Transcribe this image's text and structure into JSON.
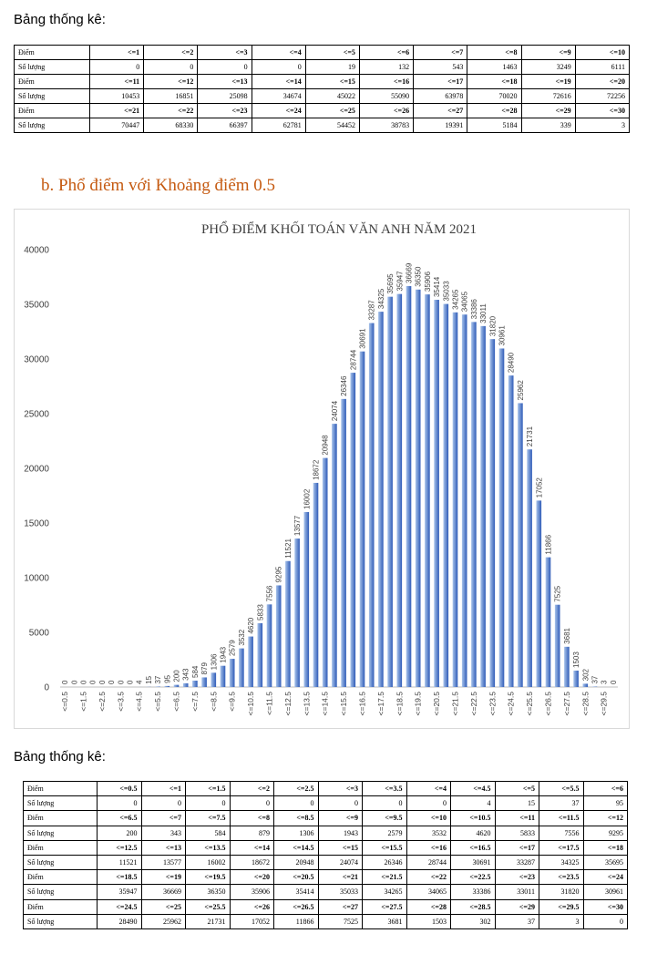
{
  "top_label": "Bảng thống kê:",
  "section_title": "b. Phổ điểm với Khoảng điểm 0.5",
  "bottom_label": "Bảng thống kê:",
  "colors": {
    "bar_light": "#a9c4eb",
    "bar_dark": "#2f5bb7",
    "title_accent": "#c55a11"
  },
  "table1": {
    "row_label_score": "Điểm",
    "row_label_count": "Số lượng",
    "blocks": [
      {
        "scores": [
          "<=1",
          "<=2",
          "<=3",
          "<=4",
          "<=5",
          "<=6",
          "<=7",
          "<=8",
          "<=9",
          "<=10"
        ],
        "counts": [
          "0",
          "0",
          "0",
          "0",
          "19",
          "132",
          "543",
          "1463",
          "3249",
          "6111"
        ]
      },
      {
        "scores": [
          "<=11",
          "<=12",
          "<=13",
          "<=14",
          "<=15",
          "<=16",
          "<=17",
          "<=18",
          "<=19",
          "<=20"
        ],
        "counts": [
          "10453",
          "16851",
          "25098",
          "34674",
          "45022",
          "55090",
          "63978",
          "70020",
          "72616",
          "72256"
        ]
      },
      {
        "scores": [
          "<=21",
          "<=22",
          "<=23",
          "<=24",
          "<=25",
          "<=26",
          "<=27",
          "<=28",
          "<=29",
          "<=30"
        ],
        "counts": [
          "70447",
          "68330",
          "66397",
          "62781",
          "54452",
          "38783",
          "19391",
          "5184",
          "339",
          "3"
        ]
      }
    ]
  },
  "chart_data": {
    "type": "bar",
    "title": "PHỔ ĐIỂM KHỐI TOÁN VĂN ANH  NĂM 2021",
    "xlabel": "",
    "ylabel": "",
    "ylim": [
      0,
      40000
    ],
    "yticks": [
      "0",
      "5000",
      "10000",
      "15000",
      "20000",
      "25000",
      "30000",
      "35000",
      "40000"
    ],
    "grid": false,
    "categories": [
      "<=0.5",
      "<=1",
      "<=1.5",
      "<=2",
      "<=2.5",
      "<=3",
      "<=3.5",
      "<=4",
      "<=4.5",
      "<=5",
      "<=5.5",
      "<=6",
      "<=6.5",
      "<=7",
      "<=7.5",
      "<=8",
      "<=8.5",
      "<=9",
      "<=9.5",
      "<=10",
      "<=10.5",
      "<=11",
      "<=11.5",
      "<=12",
      "<=12.5",
      "<=13",
      "<=13.5",
      "<=14",
      "<=14.5",
      "<=15",
      "<=15.5",
      "<=16",
      "<=16.5",
      "<=17",
      "<=17.5",
      "<=18",
      "<=18.5",
      "<=19",
      "<=19.5",
      "<=20",
      "<=20.5",
      "<=21",
      "<=21.5",
      "<=22",
      "<=22.5",
      "<=23",
      "<=23.5",
      "<=24",
      "<=24.5",
      "<=25",
      "<=25.5",
      "<=26",
      "<=26.5",
      "<=27",
      "<=27.5",
      "<=28",
      "<=28.5",
      "<=29",
      "<=29.5",
      "<=30"
    ],
    "x_tick_labels": [
      "<=0.5",
      "<=1.5",
      "<=2.5",
      "<=3.5",
      "<=4.5",
      "<=5.5",
      "<=6.5",
      "<=7.5",
      "<=8.5",
      "<=9.5",
      "<=10.5",
      "<=11.5",
      "<=12.5",
      "<=13.5",
      "<=14.5",
      "<=15.5",
      "<=16.5",
      "<=17.5",
      "<=18.5",
      "<=19.5",
      "<=20.5",
      "<=21.5",
      "<=22.5",
      "<=23.5",
      "<=24.5",
      "<=25.5",
      "<=26.5",
      "<=27.5",
      "<=28.5",
      "<=29.5"
    ],
    "values": [
      0,
      0,
      0,
      0,
      0,
      0,
      0,
      0,
      4,
      15,
      37,
      95,
      200,
      343,
      584,
      879,
      1306,
      1943,
      2579,
      3532,
      4620,
      5833,
      7556,
      9295,
      11521,
      13577,
      16002,
      18672,
      20948,
      24074,
      26346,
      28744,
      30691,
      33287,
      34325,
      35695,
      35947,
      36669,
      36350,
      35906,
      35414,
      35033,
      34265,
      34065,
      33386,
      33011,
      31820,
      30961,
      28490,
      25962,
      21731,
      17052,
      11866,
      7525,
      3681,
      1503,
      302,
      37,
      3,
      0
    ]
  },
  "table2": {
    "row_label_score": "Điểm",
    "row_label_count": "Số lượng",
    "blocks": [
      {
        "scores": [
          "<=0.5",
          "<=1",
          "<=1.5",
          "<=2",
          "<=2.5",
          "<=3",
          "<=3.5",
          "<=4",
          "<=4.5",
          "<=5",
          "<=5.5",
          "<=6"
        ],
        "counts": [
          "0",
          "0",
          "0",
          "0",
          "0",
          "0",
          "0",
          "0",
          "4",
          "15",
          "37",
          "95"
        ]
      },
      {
        "scores": [
          "<=6.5",
          "<=7",
          "<=7.5",
          "<=8",
          "<=8.5",
          "<=9",
          "<=9.5",
          "<=10",
          "<=10.5",
          "<=11",
          "<=11.5",
          "<=12"
        ],
        "counts": [
          "200",
          "343",
          "584",
          "879",
          "1306",
          "1943",
          "2579",
          "3532",
          "4620",
          "5833",
          "7556",
          "9295"
        ]
      },
      {
        "scores": [
          "<=12.5",
          "<=13",
          "<=13.5",
          "<=14",
          "<=14.5",
          "<=15",
          "<=15.5",
          "<=16",
          "<=16.5",
          "<=17",
          "<=17.5",
          "<=18"
        ],
        "counts": [
          "11521",
          "13577",
          "16002",
          "18672",
          "20948",
          "24074",
          "26346",
          "28744",
          "30691",
          "33287",
          "34325",
          "35695"
        ]
      },
      {
        "scores": [
          "<=18.5",
          "<=19",
          "<=19.5",
          "<=20",
          "<=20.5",
          "<=21",
          "<=21.5",
          "<=22",
          "<=22.5",
          "<=23",
          "<=23.5",
          "<=24"
        ],
        "counts": [
          "35947",
          "36669",
          "36350",
          "35906",
          "35414",
          "35033",
          "34265",
          "34065",
          "33386",
          "33011",
          "31820",
          "30961"
        ]
      },
      {
        "scores": [
          "<=24.5",
          "<=25",
          "<=25.5",
          "<=26",
          "<=26.5",
          "<=27",
          "<=27.5",
          "<=28",
          "<=28.5",
          "<=29",
          "<=29.5",
          "<=30"
        ],
        "counts": [
          "28490",
          "25962",
          "21731",
          "17052",
          "11866",
          "7525",
          "3681",
          "1503",
          "302",
          "37",
          "3",
          "0"
        ]
      }
    ]
  }
}
